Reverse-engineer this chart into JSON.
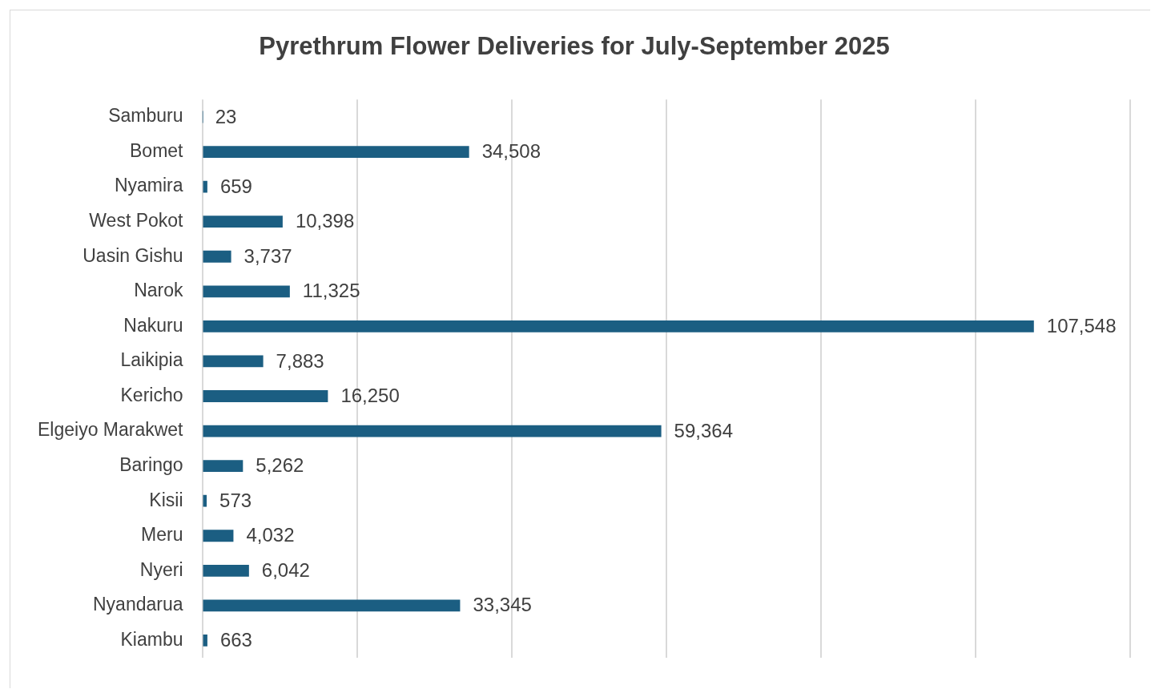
{
  "chart_data": {
    "type": "bar",
    "orientation": "horizontal",
    "title": "Pyrethrum Flower Deliveries for July-September 2025",
    "categories": [
      "Samburu",
      "Bomet",
      "Nyamira",
      "West Pokot",
      "Uasin Gishu",
      "Narok",
      "Nakuru",
      "Laikipia",
      "Kericho",
      "Elgeiyo Marakwet",
      "Baringo",
      "Kisii",
      "Meru",
      "Nyeri",
      "Nyandarua",
      "Kiambu"
    ],
    "values": [
      23,
      34508,
      659,
      10398,
      3737,
      11325,
      107548,
      7883,
      16250,
      59364,
      5262,
      573,
      4032,
      6042,
      33345,
      663
    ],
    "color": "#1b5e82",
    "xlim": [
      0,
      120000
    ],
    "xticks": [
      {
        "value": 0,
        "label": null
      },
      {
        "value": 20000,
        "label": null
      },
      {
        "value": 40000,
        "label": null
      },
      {
        "value": 60000,
        "label": null
      },
      {
        "value": 80000,
        "label": null
      },
      {
        "value": 100000,
        "label": null
      },
      {
        "value": 120000,
        "label": null
      }
    ],
    "value_labels": [
      "23",
      "34,508",
      "659",
      "10,398",
      "3,737",
      "11,325",
      "107,548",
      "7,883",
      "16,250",
      "59,364",
      "5,262",
      "573",
      "4,032",
      "6,042",
      "33,345",
      "663"
    ],
    "grid": "x",
    "tick_labels": "y"
  }
}
